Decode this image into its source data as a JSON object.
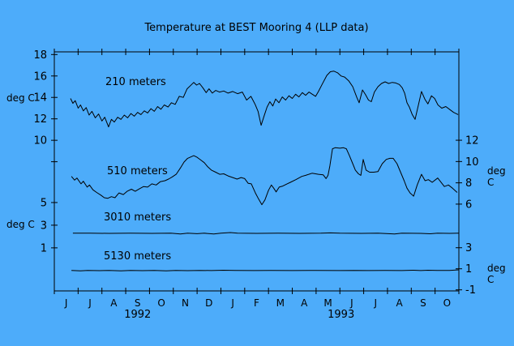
{
  "chart_data": {
    "type": "line",
    "title": "Temperature at BEST Mooring 4 (LLP data)",
    "background_color": "#4DACFA",
    "line_color": "#000000",
    "unit_label": "deg C",
    "x_domain": [
      0,
      17
    ],
    "months": [
      "J",
      "J",
      "A",
      "S",
      "O",
      "N",
      "D",
      "J",
      "F",
      "M",
      "A",
      "M",
      "J",
      "J",
      "A",
      "S",
      "O"
    ],
    "years": [
      {
        "label": "1992",
        "at_month": 3.5
      },
      {
        "label": "1993",
        "at_month": 12.05
      }
    ],
    "scales": {
      "s210": {
        "side": "left",
        "min": -4.05,
        "max": 18.25,
        "ticks": [
          {
            "v": 18,
            "label": "18"
          },
          {
            "v": 16,
            "label": "16"
          },
          {
            "v": 14,
            "label": "14"
          },
          {
            "v": 12,
            "label": "12"
          },
          {
            "v": 10,
            "label": "10"
          },
          {
            "v": 8,
            "label": ""
          }
        ]
      },
      "s510": {
        "side": "right",
        "min": -2.15,
        "max": 20.3,
        "ticks": [
          {
            "v": 12,
            "label": "12"
          },
          {
            "v": 10,
            "label": "10"
          },
          {
            "v": 8,
            "label": "8"
          },
          {
            "v": 6,
            "label": "6"
          }
        ]
      },
      "s3010": {
        "side": "left",
        "min": -2.8,
        "max": 18.3,
        "ticks": [
          {
            "v": 5,
            "label": "5"
          },
          {
            "v": 3,
            "label": "3"
          },
          {
            "v": 1,
            "label": "1"
          }
        ]
      },
      "s5130": {
        "side": "right",
        "min": -1.1,
        "max": 21.6,
        "ticks": [
          {
            "v": 3,
            "label": "3"
          },
          {
            "v": 1,
            "label": "1"
          },
          {
            "v": -1,
            "label": "-1"
          }
        ]
      }
    },
    "series": [
      {
        "name": "210 meters",
        "scale": "s210",
        "points": [
          [
            0.68,
            13.9
          ],
          [
            0.78,
            13.45
          ],
          [
            0.88,
            13.7
          ],
          [
            1.0,
            13.0
          ],
          [
            1.1,
            13.3
          ],
          [
            1.22,
            12.75
          ],
          [
            1.34,
            13.05
          ],
          [
            1.46,
            12.35
          ],
          [
            1.58,
            12.7
          ],
          [
            1.72,
            12.1
          ],
          [
            1.86,
            12.45
          ],
          [
            2.0,
            11.8
          ],
          [
            2.12,
            12.15
          ],
          [
            2.28,
            11.25
          ],
          [
            2.4,
            11.95
          ],
          [
            2.52,
            11.7
          ],
          [
            2.66,
            12.15
          ],
          [
            2.8,
            11.95
          ],
          [
            2.94,
            12.35
          ],
          [
            3.08,
            12.1
          ],
          [
            3.22,
            12.5
          ],
          [
            3.36,
            12.25
          ],
          [
            3.5,
            12.6
          ],
          [
            3.64,
            12.4
          ],
          [
            3.78,
            12.75
          ],
          [
            3.92,
            12.55
          ],
          [
            4.06,
            12.95
          ],
          [
            4.2,
            12.7
          ],
          [
            4.34,
            13.15
          ],
          [
            4.48,
            12.9
          ],
          [
            4.62,
            13.3
          ],
          [
            4.78,
            13.1
          ],
          [
            4.92,
            13.5
          ],
          [
            5.08,
            13.35
          ],
          [
            5.25,
            14.1
          ],
          [
            5.42,
            14.0
          ],
          [
            5.58,
            14.8
          ],
          [
            5.72,
            15.1
          ],
          [
            5.86,
            15.4
          ],
          [
            5.98,
            15.15
          ],
          [
            6.1,
            15.3
          ],
          [
            6.24,
            14.9
          ],
          [
            6.38,
            14.45
          ],
          [
            6.5,
            14.8
          ],
          [
            6.64,
            14.4
          ],
          [
            6.78,
            14.65
          ],
          [
            6.94,
            14.5
          ],
          [
            7.12,
            14.6
          ],
          [
            7.3,
            14.4
          ],
          [
            7.5,
            14.55
          ],
          [
            7.7,
            14.35
          ],
          [
            7.9,
            14.5
          ],
          [
            8.08,
            13.75
          ],
          [
            8.26,
            14.1
          ],
          [
            8.44,
            13.35
          ],
          [
            8.56,
            12.7
          ],
          [
            8.69,
            11.4
          ],
          [
            8.82,
            12.3
          ],
          [
            8.94,
            13.1
          ],
          [
            9.06,
            13.6
          ],
          [
            9.18,
            13.2
          ],
          [
            9.3,
            13.85
          ],
          [
            9.44,
            13.5
          ],
          [
            9.58,
            14.05
          ],
          [
            9.72,
            13.75
          ],
          [
            9.86,
            14.15
          ],
          [
            10.0,
            13.9
          ],
          [
            10.14,
            14.3
          ],
          [
            10.28,
            14.05
          ],
          [
            10.42,
            14.45
          ],
          [
            10.56,
            14.2
          ],
          [
            10.7,
            14.5
          ],
          [
            10.84,
            14.3
          ],
          [
            10.98,
            14.1
          ],
          [
            11.1,
            14.55
          ],
          [
            11.25,
            15.2
          ],
          [
            11.45,
            16.05
          ],
          [
            11.6,
            16.4
          ],
          [
            11.75,
            16.45
          ],
          [
            11.9,
            16.3
          ],
          [
            12.05,
            16.0
          ],
          [
            12.2,
            15.9
          ],
          [
            12.37,
            15.55
          ],
          [
            12.54,
            15.0
          ],
          [
            12.71,
            14.0
          ],
          [
            12.81,
            13.5
          ],
          [
            12.95,
            14.7
          ],
          [
            13.08,
            14.25
          ],
          [
            13.2,
            13.75
          ],
          [
            13.32,
            13.6
          ],
          [
            13.45,
            14.5
          ],
          [
            13.6,
            15.0
          ],
          [
            13.75,
            15.3
          ],
          [
            13.9,
            15.45
          ],
          [
            14.05,
            15.3
          ],
          [
            14.2,
            15.4
          ],
          [
            14.35,
            15.35
          ],
          [
            14.5,
            15.2
          ],
          [
            14.62,
            14.9
          ],
          [
            14.72,
            14.4
          ],
          [
            14.82,
            13.5
          ],
          [
            14.92,
            13.1
          ],
          [
            15.04,
            12.4
          ],
          [
            15.16,
            11.95
          ],
          [
            15.3,
            13.3
          ],
          [
            15.43,
            14.55
          ],
          [
            15.58,
            13.8
          ],
          [
            15.7,
            13.4
          ],
          [
            15.85,
            14.15
          ],
          [
            15.98,
            13.9
          ],
          [
            16.12,
            13.3
          ],
          [
            16.28,
            13.0
          ],
          [
            16.45,
            13.15
          ],
          [
            16.6,
            12.9
          ],
          [
            16.78,
            12.6
          ],
          [
            16.97,
            12.4
          ]
        ]
      },
      {
        "name": "510 meters",
        "scale": "s510",
        "points": [
          [
            0.72,
            8.6
          ],
          [
            0.85,
            8.25
          ],
          [
            0.95,
            8.45
          ],
          [
            1.12,
            7.9
          ],
          [
            1.22,
            8.15
          ],
          [
            1.38,
            7.6
          ],
          [
            1.48,
            7.8
          ],
          [
            1.62,
            7.35
          ],
          [
            1.78,
            7.1
          ],
          [
            1.95,
            6.85
          ],
          [
            2.1,
            6.6
          ],
          [
            2.25,
            6.55
          ],
          [
            2.4,
            6.7
          ],
          [
            2.55,
            6.6
          ],
          [
            2.72,
            7.05
          ],
          [
            2.9,
            6.9
          ],
          [
            3.06,
            7.2
          ],
          [
            3.24,
            7.4
          ],
          [
            3.4,
            7.2
          ],
          [
            3.58,
            7.45
          ],
          [
            3.75,
            7.65
          ],
          [
            3.92,
            7.6
          ],
          [
            4.1,
            7.9
          ],
          [
            4.28,
            7.8
          ],
          [
            4.45,
            8.1
          ],
          [
            4.65,
            8.2
          ],
          [
            4.8,
            8.35
          ],
          [
            4.95,
            8.55
          ],
          [
            5.12,
            8.8
          ],
          [
            5.3,
            9.4
          ],
          [
            5.45,
            9.95
          ],
          [
            5.6,
            10.3
          ],
          [
            5.86,
            10.55
          ],
          [
            6.0,
            10.4
          ],
          [
            6.15,
            10.15
          ],
          [
            6.3,
            9.9
          ],
          [
            6.45,
            9.5
          ],
          [
            6.6,
            9.2
          ],
          [
            6.78,
            9.0
          ],
          [
            6.95,
            8.8
          ],
          [
            7.12,
            8.85
          ],
          [
            7.3,
            8.65
          ],
          [
            7.5,
            8.5
          ],
          [
            7.68,
            8.35
          ],
          [
            7.85,
            8.5
          ],
          [
            8.0,
            8.4
          ],
          [
            8.15,
            7.95
          ],
          [
            8.28,
            7.9
          ],
          [
            8.45,
            7.05
          ],
          [
            8.58,
            6.5
          ],
          [
            8.72,
            5.95
          ],
          [
            8.85,
            6.4
          ],
          [
            9.0,
            7.3
          ],
          [
            9.12,
            7.8
          ],
          [
            9.22,
            7.5
          ],
          [
            9.32,
            7.15
          ],
          [
            9.45,
            7.6
          ],
          [
            9.6,
            7.7
          ],
          [
            9.78,
            7.9
          ],
          [
            9.92,
            8.05
          ],
          [
            10.15,
            8.3
          ],
          [
            10.4,
            8.6
          ],
          [
            10.56,
            8.7
          ],
          [
            10.83,
            8.9
          ],
          [
            11.1,
            8.8
          ],
          [
            11.3,
            8.75
          ],
          [
            11.42,
            8.4
          ],
          [
            11.5,
            8.7
          ],
          [
            11.58,
            9.6
          ],
          [
            11.69,
            11.2
          ],
          [
            11.8,
            11.3
          ],
          [
            12.0,
            11.25
          ],
          [
            12.15,
            11.3
          ],
          [
            12.27,
            11.2
          ],
          [
            12.4,
            10.55
          ],
          [
            12.54,
            9.8
          ],
          [
            12.65,
            9.2
          ],
          [
            12.78,
            8.85
          ],
          [
            12.88,
            8.7
          ],
          [
            12.98,
            10.2
          ],
          [
            13.1,
            9.2
          ],
          [
            13.25,
            9.0
          ],
          [
            13.42,
            9.0
          ],
          [
            13.6,
            9.05
          ],
          [
            13.78,
            9.8
          ],
          [
            13.95,
            10.2
          ],
          [
            14.1,
            10.3
          ],
          [
            14.24,
            10.3
          ],
          [
            14.4,
            9.8
          ],
          [
            14.55,
            9.0
          ],
          [
            14.7,
            8.2
          ],
          [
            14.82,
            7.5
          ],
          [
            14.95,
            7.05
          ],
          [
            15.1,
            6.75
          ],
          [
            15.25,
            7.8
          ],
          [
            15.43,
            8.8
          ],
          [
            15.58,
            8.2
          ],
          [
            15.72,
            8.3
          ],
          [
            15.88,
            8.05
          ],
          [
            16.11,
            8.45
          ],
          [
            16.39,
            7.65
          ],
          [
            16.56,
            7.8
          ],
          [
            16.73,
            7.5
          ],
          [
            16.93,
            7.1
          ]
        ]
      },
      {
        "name": "3010 meters",
        "scale": "s3010",
        "points": [
          [
            0.78,
            2.29
          ],
          [
            1.5,
            2.29
          ],
          [
            2.3,
            2.28
          ],
          [
            3.2,
            2.29
          ],
          [
            4.1,
            2.28
          ],
          [
            4.9,
            2.29
          ],
          [
            5.3,
            2.22
          ],
          [
            5.6,
            2.29
          ],
          [
            6.0,
            2.25
          ],
          [
            6.3,
            2.29
          ],
          [
            6.7,
            2.22
          ],
          [
            7.0,
            2.29
          ],
          [
            7.4,
            2.35
          ],
          [
            7.7,
            2.29
          ],
          [
            8.5,
            2.28
          ],
          [
            9.4,
            2.29
          ],
          [
            10.3,
            2.28
          ],
          [
            11.2,
            2.29
          ],
          [
            11.6,
            2.32
          ],
          [
            12.0,
            2.29
          ],
          [
            12.9,
            2.28
          ],
          [
            13.6,
            2.29
          ],
          [
            14.3,
            2.22
          ],
          [
            14.6,
            2.29
          ],
          [
            15.4,
            2.28
          ],
          [
            15.8,
            2.24
          ],
          [
            16.1,
            2.29
          ],
          [
            16.6,
            2.28
          ],
          [
            17.0,
            2.29
          ]
        ]
      },
      {
        "name": "5130 meters",
        "scale": "s5130",
        "points": [
          [
            0.72,
            0.85
          ],
          [
            1.1,
            0.8
          ],
          [
            1.4,
            0.85
          ],
          [
            1.9,
            0.82
          ],
          [
            2.3,
            0.85
          ],
          [
            2.8,
            0.8
          ],
          [
            3.2,
            0.85
          ],
          [
            3.7,
            0.82
          ],
          [
            4.2,
            0.85
          ],
          [
            4.7,
            0.8
          ],
          [
            5.1,
            0.85
          ],
          [
            5.6,
            0.82
          ],
          [
            6.1,
            0.85
          ],
          [
            6.6,
            0.83
          ],
          [
            7.1,
            0.86
          ],
          [
            7.6,
            0.85
          ],
          [
            8.4,
            0.83
          ],
          [
            9.1,
            0.85
          ],
          [
            10.0,
            0.83
          ],
          [
            11.0,
            0.85
          ],
          [
            12.0,
            0.83
          ],
          [
            12.6,
            0.85
          ],
          [
            13.2,
            0.83
          ],
          [
            13.9,
            0.85
          ],
          [
            14.6,
            0.83
          ],
          [
            15.1,
            0.86
          ],
          [
            15.4,
            0.83
          ],
          [
            15.7,
            0.86
          ],
          [
            16.1,
            0.85
          ],
          [
            16.6,
            0.84
          ],
          [
            17.0,
            0.9
          ]
        ]
      }
    ]
  }
}
